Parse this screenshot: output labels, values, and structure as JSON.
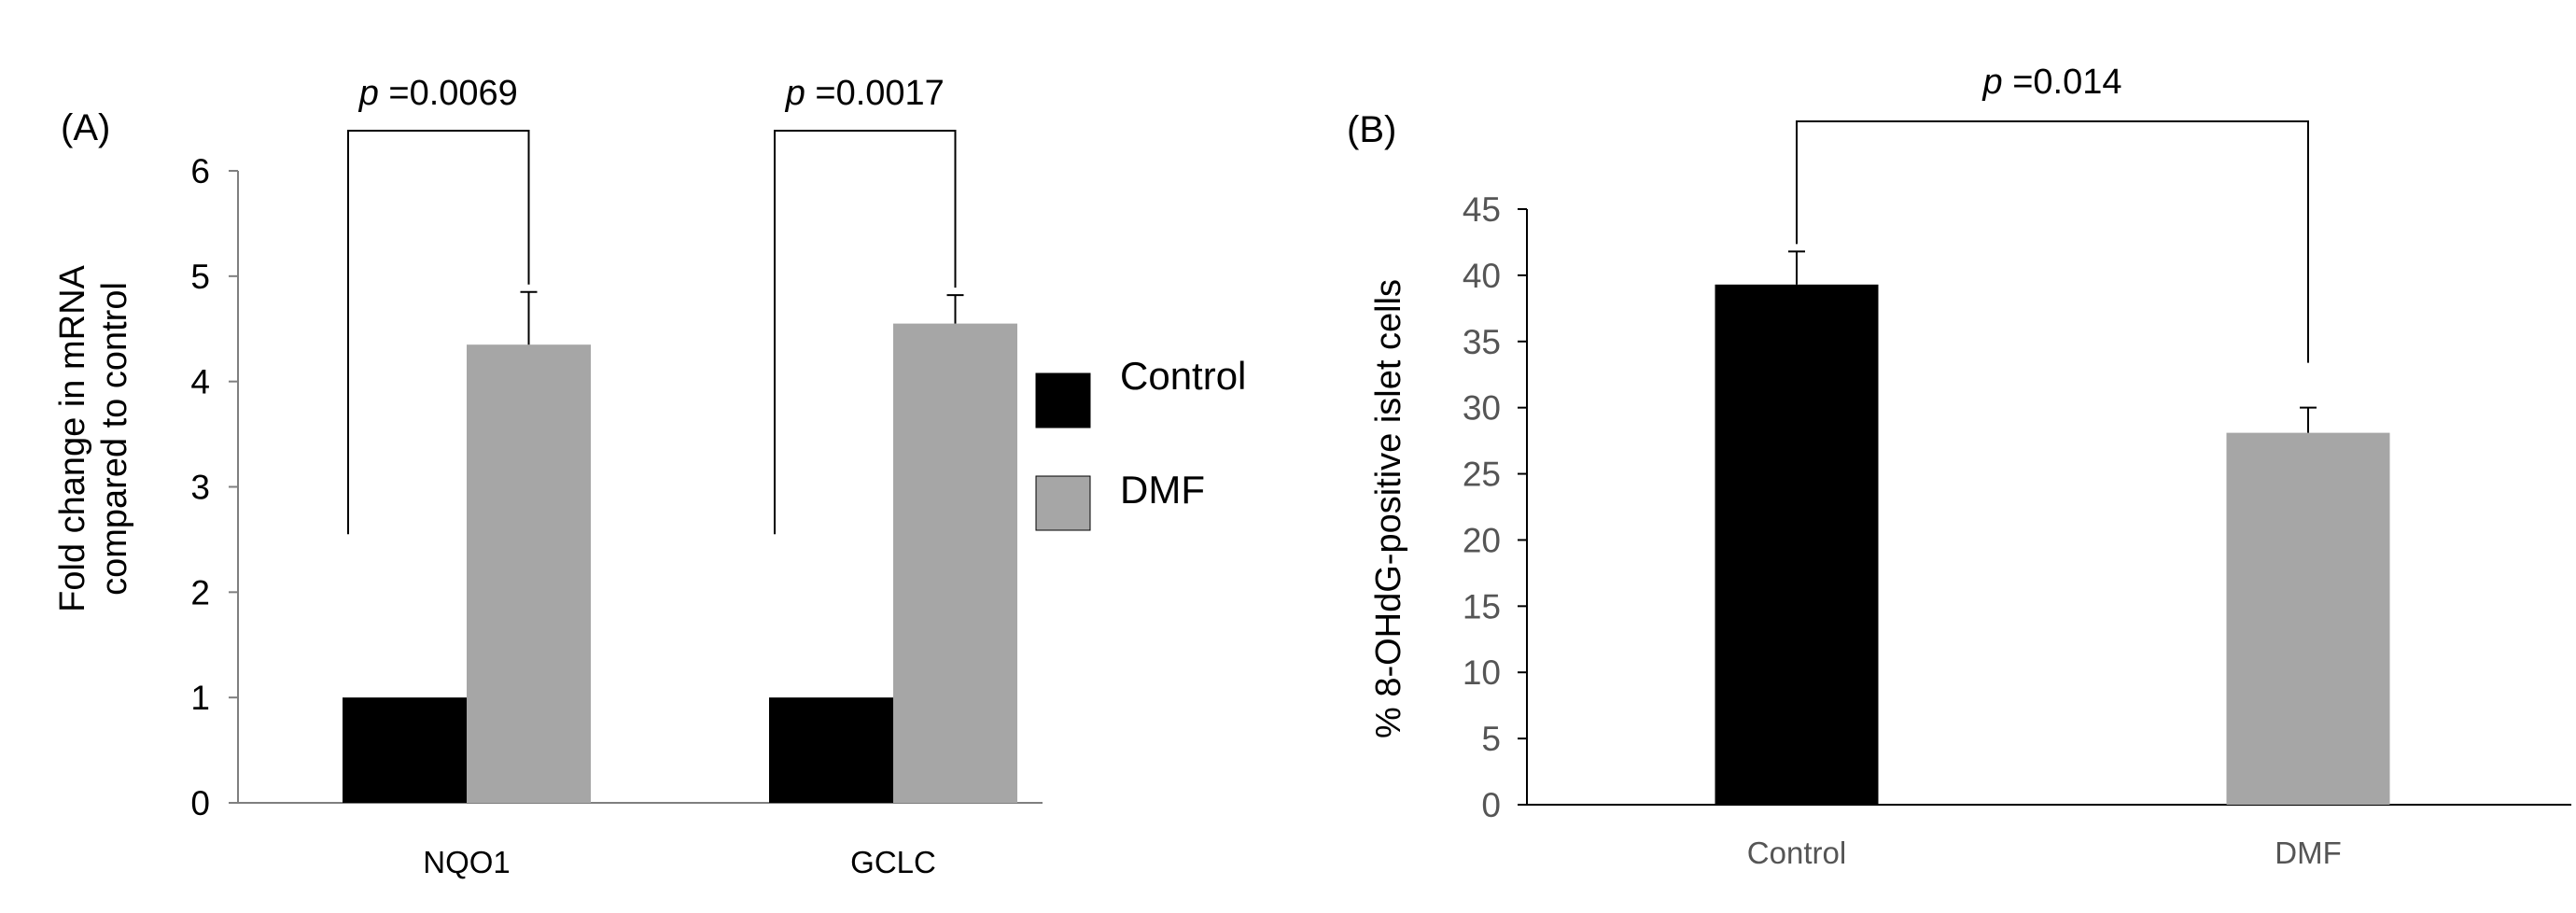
{
  "chart_data": [
    {
      "type": "bar",
      "panel_label": "(A)",
      "ylabel_line1": "Fold change in mRNA",
      "ylabel_line2": "compared to control",
      "ylim": [
        0,
        6
      ],
      "yticks": [
        0,
        1,
        2,
        3,
        4,
        5,
        6
      ],
      "categories": [
        "NQO1",
        "GCLC"
      ],
      "series": [
        {
          "name": "Control",
          "color": "#000000",
          "values": [
            1.0,
            1.0
          ],
          "errors": [
            0,
            0
          ]
        },
        {
          "name": "DMF",
          "color": "#a6a6a6",
          "values": [
            4.35,
            4.55
          ],
          "errors": [
            0.5,
            0.27
          ]
        }
      ],
      "legend": [
        "Control",
        "DMF"
      ],
      "legend_position": "right",
      "annotations": [
        {
          "italic": "p",
          "text": " =0.0069",
          "category": "NQO1"
        },
        {
          "italic": "p",
          "text": " =0.0017",
          "category": "GCLC"
        }
      ]
    },
    {
      "type": "bar",
      "panel_label": "(B)",
      "ylabel": "% 8-OHdG-positive islet cells",
      "ylim": [
        0,
        45
      ],
      "yticks": [
        0,
        5,
        10,
        15,
        20,
        25,
        30,
        35,
        40,
        45
      ],
      "categories": [
        "Control",
        "DMF"
      ],
      "values": [
        39.3,
        28.1
      ],
      "errors": [
        2.5,
        1.9
      ],
      "colors": [
        "#000000",
        "#a6a6a6"
      ],
      "annotations": [
        {
          "italic": "p",
          "text": " =0.014"
        }
      ]
    }
  ]
}
